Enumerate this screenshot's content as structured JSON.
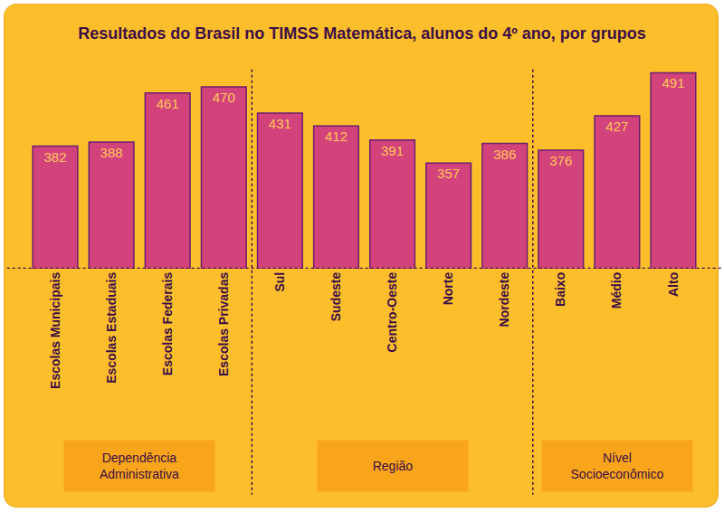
{
  "chart_data": {
    "type": "bar",
    "title": "Resultados do Brasil no TIMSS Matemática, alunos do 4º ano, por grupos",
    "groups": [
      {
        "label": "Dependência\nAdministrativa",
        "categories": [
          "Escolas Municipais",
          "Escolas Estaduais",
          "Escolas Federais",
          "Escolas Privadas"
        ],
        "values": [
          382,
          388,
          461,
          470
        ]
      },
      {
        "label": "Região",
        "categories": [
          "Sul",
          "Sudeste",
          "Centro-Oeste",
          "Norte",
          "Nordeste"
        ],
        "values": [
          431,
          412,
          391,
          357,
          386
        ]
      },
      {
        "label": "Nível\nSocioeconômico",
        "categories": [
          "Baixo",
          "Médio",
          "Alto"
        ],
        "values": [
          376,
          427,
          491
        ]
      }
    ],
    "color": "#D3437B",
    "ylim": [
      200,
      505
    ],
    "data_labels": true,
    "tick_labels": "x",
    "grid": false
  }
}
